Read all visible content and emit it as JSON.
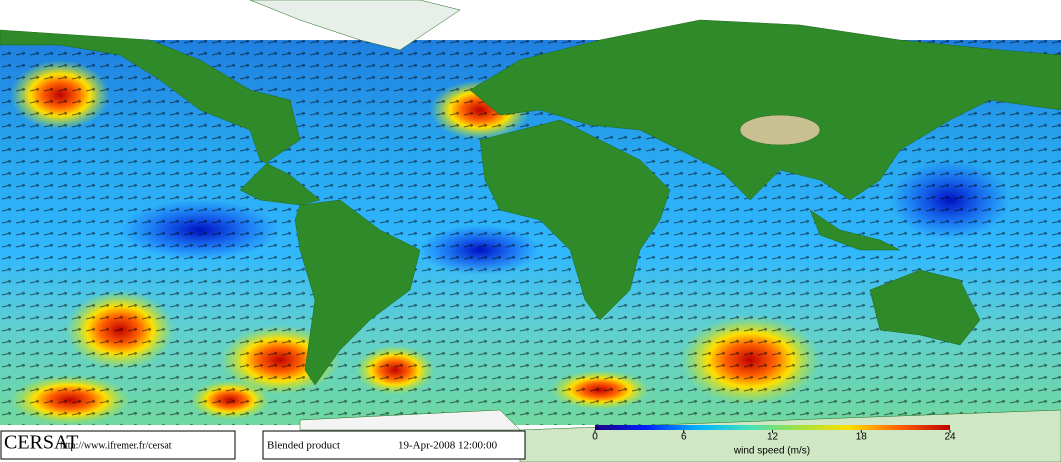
{
  "footer": {
    "logo": "CERSAT",
    "url": "http://www.ifremer.fr/cersat",
    "product": "Blended product",
    "date": "19-Apr-2008 12:00:00"
  },
  "colorbar": {
    "label": "wind speed (m/s)",
    "lim": [
      0,
      24
    ],
    "ticks": [
      0,
      6,
      12,
      18,
      24
    ],
    "colors": [
      "#1a0080",
      "#0020ff",
      "#00b0ff",
      "#40e0c0",
      "#a0e040",
      "#ffe000",
      "#ff6000",
      "#c00000"
    ]
  }
}
